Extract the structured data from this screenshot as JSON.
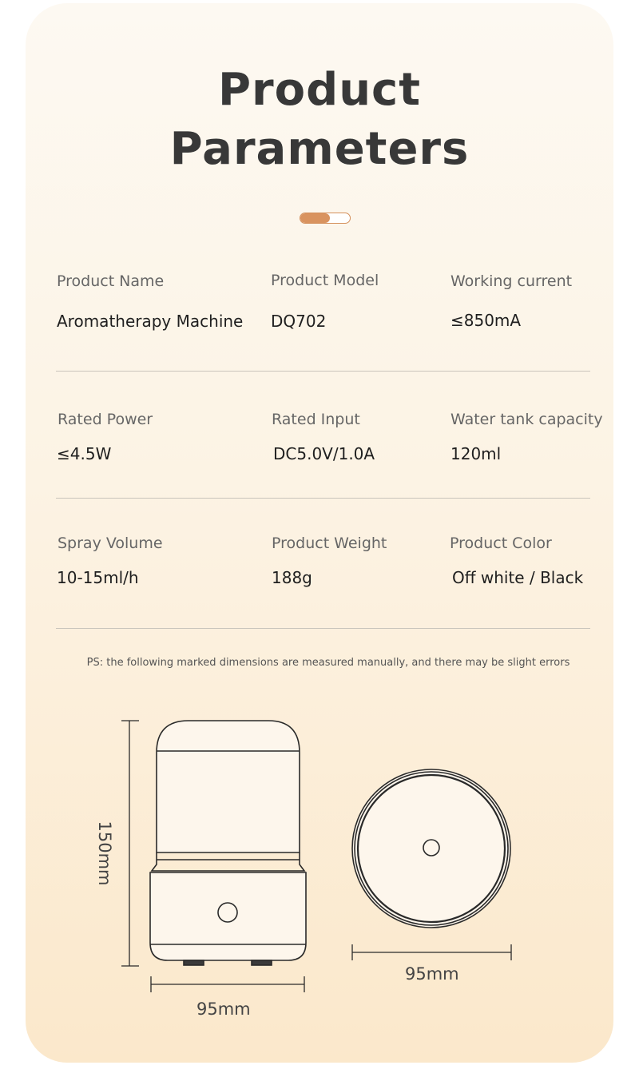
{
  "title_line1": "Product",
  "title_line2": "Parameters",
  "indicator": {
    "progress": 0.6,
    "color": "#d9935f"
  },
  "params": [
    {
      "label": "Product Name",
      "value": "Aromatherapy Machine"
    },
    {
      "label": "Product Model",
      "value": "DQ702"
    },
    {
      "label": "Working current",
      "value": "≤850mA"
    },
    {
      "label": "Rated Power",
      "value": "≤4.5W"
    },
    {
      "label": "Rated Input",
      "value": "DC5.0V/1.0A"
    },
    {
      "label": "Water tank capacity",
      "value": "120ml"
    },
    {
      "label": "Spray Volume",
      "value": "10-15ml/h"
    },
    {
      "label": "Product Weight",
      "value": "188g"
    },
    {
      "label": "Product Color",
      "value": "Off white / Black"
    }
  ],
  "note": "PS: the following marked dimensions are measured manually, and there may be slight errors",
  "dimensions": {
    "height": "150mm",
    "side_width": "95mm",
    "top_width": "95mm"
  }
}
